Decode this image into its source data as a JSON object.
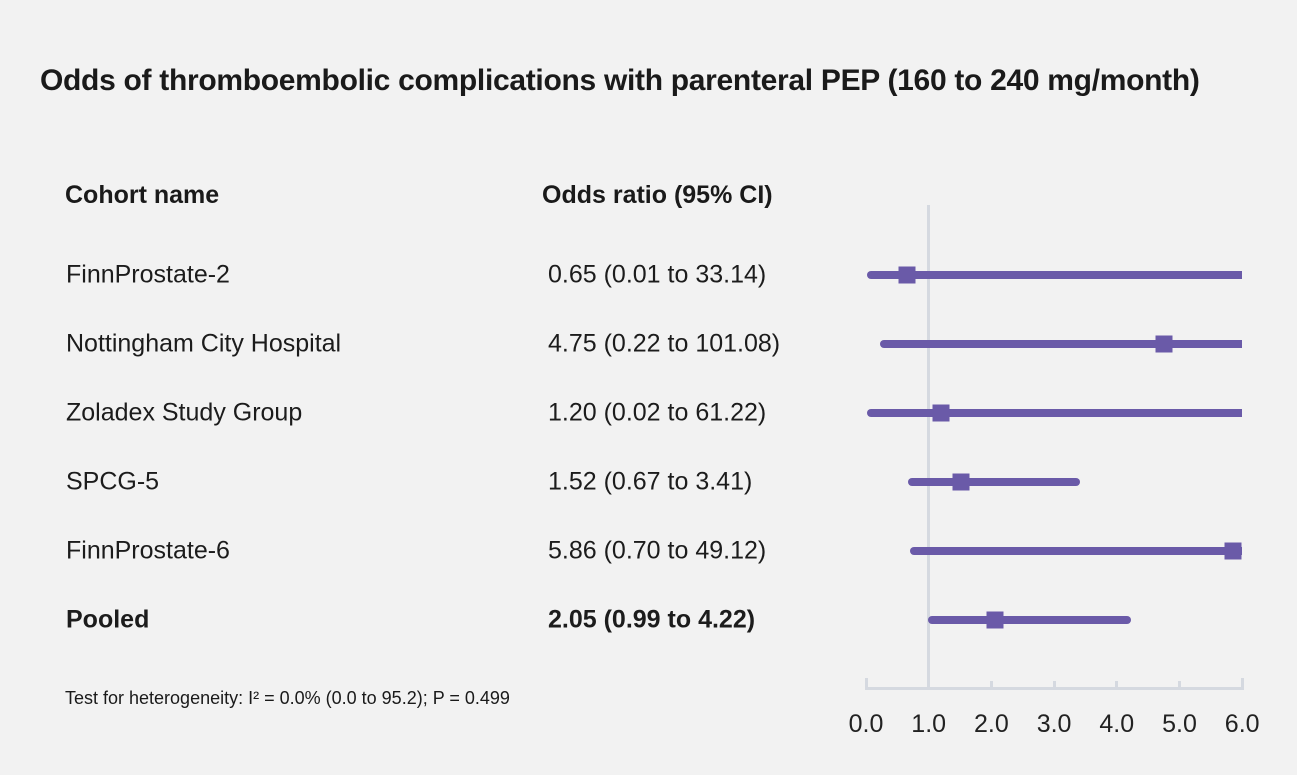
{
  "title": "Odds of thromboembolic complications with parenteral PEP (160 to 240 mg/month)",
  "columns": {
    "cohort": "Cohort name",
    "odds_ratio": "Odds ratio (95% CI)"
  },
  "colors": {
    "background": "#f2f2f2",
    "series_purple": "#6a5aa8",
    "axis_gray": "#d5d9e0",
    "text": "#1a1a1a"
  },
  "chart_data": {
    "type": "forest",
    "title": "Odds of thromboembolic complications with parenteral PEP (160 to 240 mg/month)",
    "xlabel": "",
    "xlim": [
      0.0,
      6.0
    ],
    "x_ticks": [
      "0.0",
      "1.0",
      "2.0",
      "3.0",
      "4.0",
      "5.0",
      "6.0"
    ],
    "x_tick_values": [
      0.0,
      1.0,
      2.0,
      3.0,
      4.0,
      5.0,
      6.0
    ],
    "reference_line_x": 1.0,
    "grid": false,
    "rows": [
      {
        "cohort": "FinnProstate-2",
        "or_text": "0.65 (0.01 to 33.14)",
        "or": 0.65,
        "ci_low": 0.01,
        "ci_high": 33.14,
        "bold": false
      },
      {
        "cohort": "Nottingham City Hospital",
        "or_text": "4.75 (0.22 to 101.08)",
        "or": 4.75,
        "ci_low": 0.22,
        "ci_high": 101.08,
        "bold": false
      },
      {
        "cohort": "Zoladex Study Group",
        "or_text": "1.20 (0.02 to 61.22)",
        "or": 1.2,
        "ci_low": 0.02,
        "ci_high": 61.22,
        "bold": false
      },
      {
        "cohort": "SPCG-5",
        "or_text": "1.52 (0.67 to 3.41)",
        "or": 1.52,
        "ci_low": 0.67,
        "ci_high": 3.41,
        "bold": false
      },
      {
        "cohort": "FinnProstate-6",
        "or_text": "5.86 (0.70 to 49.12)",
        "or": 5.86,
        "ci_low": 0.7,
        "ci_high": 49.12,
        "bold": false
      },
      {
        "cohort": "Pooled",
        "or_text": "2.05 (0.99 to 4.22)",
        "or": 2.05,
        "ci_low": 0.99,
        "ci_high": 4.22,
        "bold": true
      }
    ],
    "heterogeneity_note": "Test for heterogeneity: I² = 0.0% (0.0 to 95.2); P = 0.499"
  }
}
